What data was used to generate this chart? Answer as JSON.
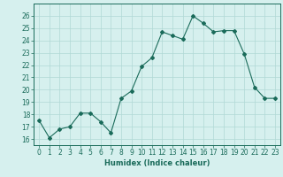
{
  "x": [
    0,
    1,
    2,
    3,
    4,
    5,
    6,
    7,
    8,
    9,
    10,
    11,
    12,
    13,
    14,
    15,
    16,
    17,
    18,
    19,
    20,
    21,
    22,
    23
  ],
  "y": [
    17.5,
    16.1,
    16.8,
    17.0,
    18.1,
    18.1,
    17.4,
    16.5,
    19.3,
    19.9,
    21.9,
    22.6,
    24.7,
    24.4,
    24.1,
    26.0,
    25.4,
    24.7,
    24.8,
    24.8,
    22.9,
    20.2,
    19.3,
    19.3
  ],
  "line_color": "#1a6b5a",
  "marker": "D",
  "marker_size": 2,
  "bg_color": "#d6f0ee",
  "grid_color": "#b0d9d5",
  "xlabel": "Humidex (Indice chaleur)",
  "ylim": [
    15.5,
    27
  ],
  "xlim": [
    -0.5,
    23.5
  ],
  "yticks": [
    16,
    17,
    18,
    19,
    20,
    21,
    22,
    23,
    24,
    25,
    26
  ],
  "xticks": [
    0,
    1,
    2,
    3,
    4,
    5,
    6,
    7,
    8,
    9,
    10,
    11,
    12,
    13,
    14,
    15,
    16,
    17,
    18,
    19,
    20,
    21,
    22,
    23
  ],
  "tick_color": "#1a6b5a",
  "label_fontsize": 6,
  "tick_fontsize": 5.5
}
